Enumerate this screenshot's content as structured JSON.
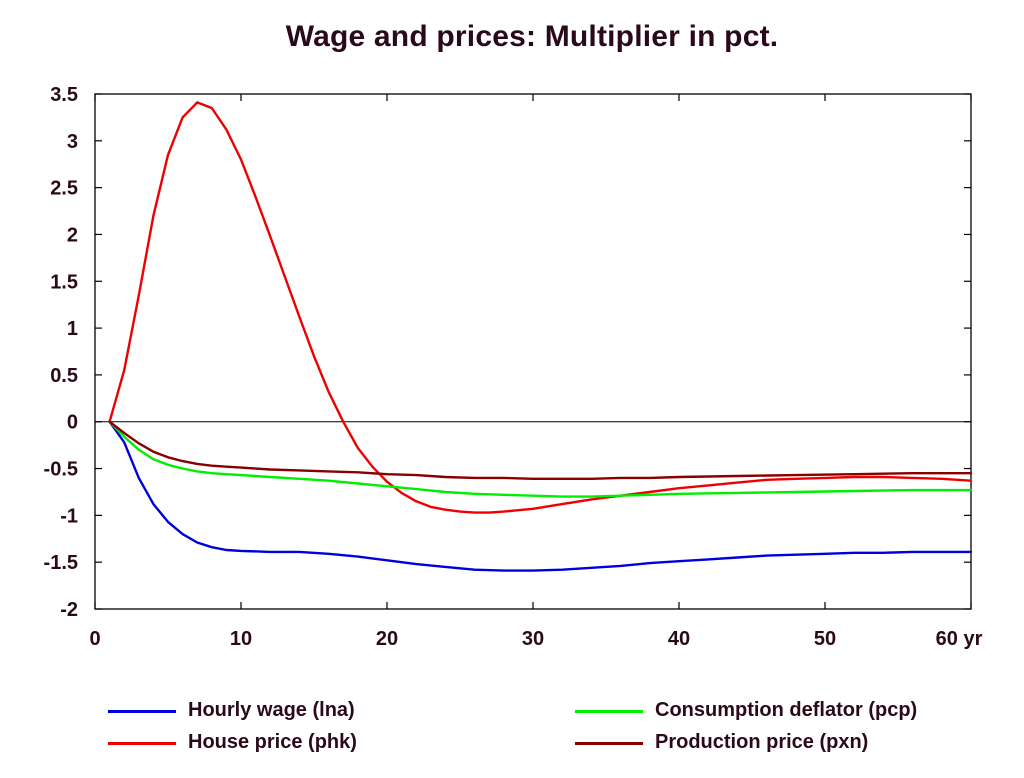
{
  "title": "Wage and prices: Multiplier in pct.",
  "chart_data": {
    "type": "line",
    "title": "Wage and prices: Multiplier in pct.",
    "xlabel": "",
    "ylabel": "",
    "xlim": [
      0,
      60
    ],
    "ylim": [
      -2,
      3.5
    ],
    "x_ticks": [
      0,
      10,
      20,
      30,
      40,
      50,
      60
    ],
    "x_tick_labels": [
      "0",
      "10",
      "20",
      "30",
      "40",
      "50",
      "60 yr"
    ],
    "y_ticks": [
      3.5,
      3,
      2.5,
      2,
      1.5,
      1,
      0.5,
      0,
      -0.5,
      -1,
      -1.5,
      -2
    ],
    "y_tick_labels": [
      "3.5",
      "3",
      "2.5",
      "2",
      "1.5",
      "1",
      "0.5",
      "0",
      "-0.5",
      "-1",
      "-1.5",
      "-2"
    ],
    "grid": false,
    "zero_line": true,
    "legend_position": "bottom",
    "series": [
      {
        "name": "Hourly wage (lna)",
        "color": "#0000dd",
        "points": [
          [
            1,
            0
          ],
          [
            2,
            -0.22
          ],
          [
            3,
            -0.6
          ],
          [
            4,
            -0.88
          ],
          [
            5,
            -1.07
          ],
          [
            6,
            -1.2
          ],
          [
            7,
            -1.29
          ],
          [
            8,
            -1.34
          ],
          [
            9,
            -1.37
          ],
          [
            10,
            -1.38
          ],
          [
            12,
            -1.39
          ],
          [
            14,
            -1.39
          ],
          [
            16,
            -1.41
          ],
          [
            18,
            -1.44
          ],
          [
            20,
            -1.48
          ],
          [
            22,
            -1.52
          ],
          [
            24,
            -1.55
          ],
          [
            26,
            -1.58
          ],
          [
            28,
            -1.59
          ],
          [
            30,
            -1.59
          ],
          [
            32,
            -1.58
          ],
          [
            34,
            -1.56
          ],
          [
            36,
            -1.54
          ],
          [
            38,
            -1.51
          ],
          [
            40,
            -1.49
          ],
          [
            42,
            -1.47
          ],
          [
            44,
            -1.45
          ],
          [
            46,
            -1.43
          ],
          [
            48,
            -1.42
          ],
          [
            50,
            -1.41
          ],
          [
            52,
            -1.4
          ],
          [
            54,
            -1.4
          ],
          [
            56,
            -1.39
          ],
          [
            58,
            -1.39
          ],
          [
            60,
            -1.39
          ]
        ]
      },
      {
        "name": "House price (phk)",
        "color": "#ee0000",
        "points": [
          [
            1,
            0
          ],
          [
            2,
            0.55
          ],
          [
            3,
            1.35
          ],
          [
            4,
            2.2
          ],
          [
            5,
            2.85
          ],
          [
            6,
            3.25
          ],
          [
            7,
            3.41
          ],
          [
            8,
            3.35
          ],
          [
            9,
            3.12
          ],
          [
            10,
            2.8
          ],
          [
            11,
            2.4
          ],
          [
            12,
            1.98
          ],
          [
            13,
            1.55
          ],
          [
            14,
            1.12
          ],
          [
            15,
            0.7
          ],
          [
            16,
            0.32
          ],
          [
            17,
            0
          ],
          [
            18,
            -0.28
          ],
          [
            19,
            -0.48
          ],
          [
            20,
            -0.64
          ],
          [
            21,
            -0.76
          ],
          [
            22,
            -0.85
          ],
          [
            23,
            -0.91
          ],
          [
            24,
            -0.94
          ],
          [
            25,
            -0.96
          ],
          [
            26,
            -0.97
          ],
          [
            27,
            -0.97
          ],
          [
            28,
            -0.96
          ],
          [
            30,
            -0.93
          ],
          [
            32,
            -0.88
          ],
          [
            34,
            -0.83
          ],
          [
            36,
            -0.79
          ],
          [
            38,
            -0.75
          ],
          [
            40,
            -0.71
          ],
          [
            42,
            -0.68
          ],
          [
            44,
            -0.65
          ],
          [
            46,
            -0.62
          ],
          [
            48,
            -0.61
          ],
          [
            50,
            -0.6
          ],
          [
            52,
            -0.59
          ],
          [
            54,
            -0.59
          ],
          [
            56,
            -0.6
          ],
          [
            58,
            -0.61
          ],
          [
            60,
            -0.63
          ]
        ]
      },
      {
        "name": "Consumption deflator (pcp)",
        "color": "#00ee00",
        "points": [
          [
            1,
            0
          ],
          [
            2,
            -0.16
          ],
          [
            3,
            -0.3
          ],
          [
            4,
            -0.4
          ],
          [
            5,
            -0.46
          ],
          [
            6,
            -0.5
          ],
          [
            7,
            -0.53
          ],
          [
            8,
            -0.55
          ],
          [
            9,
            -0.56
          ],
          [
            10,
            -0.57
          ],
          [
            12,
            -0.59
          ],
          [
            14,
            -0.61
          ],
          [
            16,
            -0.63
          ],
          [
            18,
            -0.66
          ],
          [
            20,
            -0.69
          ],
          [
            22,
            -0.72
          ],
          [
            24,
            -0.75
          ],
          [
            26,
            -0.77
          ],
          [
            28,
            -0.78
          ],
          [
            30,
            -0.79
          ],
          [
            32,
            -0.8
          ],
          [
            34,
            -0.8
          ],
          [
            36,
            -0.79
          ],
          [
            38,
            -0.78
          ],
          [
            40,
            -0.77
          ],
          [
            44,
            -0.76
          ],
          [
            48,
            -0.75
          ],
          [
            52,
            -0.74
          ],
          [
            56,
            -0.73
          ],
          [
            60,
            -0.73
          ]
        ]
      },
      {
        "name": "Production price (pxn)",
        "color": "#880000",
        "points": [
          [
            1,
            0
          ],
          [
            2,
            -0.12
          ],
          [
            3,
            -0.23
          ],
          [
            4,
            -0.32
          ],
          [
            5,
            -0.38
          ],
          [
            6,
            -0.42
          ],
          [
            7,
            -0.45
          ],
          [
            8,
            -0.47
          ],
          [
            9,
            -0.48
          ],
          [
            10,
            -0.49
          ],
          [
            12,
            -0.51
          ],
          [
            14,
            -0.52
          ],
          [
            16,
            -0.53
          ],
          [
            18,
            -0.54
          ],
          [
            20,
            -0.56
          ],
          [
            22,
            -0.57
          ],
          [
            24,
            -0.59
          ],
          [
            26,
            -0.6
          ],
          [
            28,
            -0.6
          ],
          [
            30,
            -0.61
          ],
          [
            32,
            -0.61
          ],
          [
            34,
            -0.61
          ],
          [
            36,
            -0.6
          ],
          [
            38,
            -0.6
          ],
          [
            40,
            -0.59
          ],
          [
            44,
            -0.58
          ],
          [
            48,
            -0.57
          ],
          [
            52,
            -0.56
          ],
          [
            56,
            -0.55
          ],
          [
            60,
            -0.55
          ]
        ]
      }
    ]
  },
  "legend": [
    {
      "label": "Hourly wage (lna)",
      "color": "#0000dd"
    },
    {
      "label": "Consumption deflator (pcp)",
      "color": "#00ee00"
    },
    {
      "label": "House price (phk)",
      "color": "#ee0000"
    },
    {
      "label": "Production price (pxn)",
      "color": "#880000"
    }
  ]
}
